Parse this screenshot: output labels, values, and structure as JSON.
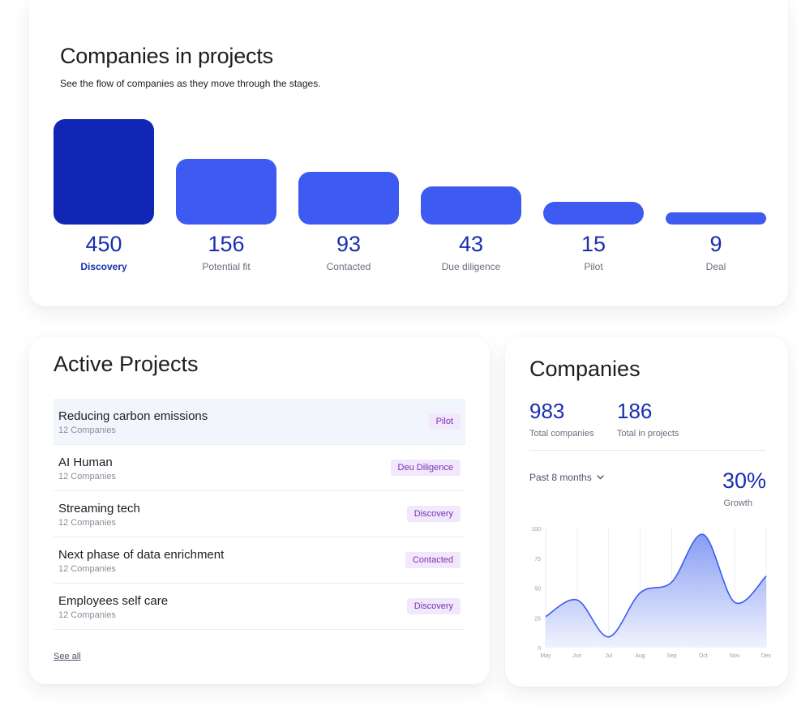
{
  "funnel": {
    "title": "Companies in projects",
    "subtitle": "See the flow of companies as they move through the stages.",
    "stages": [
      {
        "value": "450",
        "label": "Discovery",
        "count": 450,
        "active": true
      },
      {
        "value": "156",
        "label": "Potential fit",
        "count": 156,
        "active": false
      },
      {
        "value": "93",
        "label": "Contacted",
        "count": 93,
        "active": false
      },
      {
        "value": "43",
        "label": "Due diligence",
        "count": 43,
        "active": false
      },
      {
        "value": "15",
        "label": "Pilot",
        "count": 15,
        "active": false
      },
      {
        "value": "9",
        "label": "Deal",
        "count": 9,
        "active": false
      }
    ],
    "colors": {
      "active": "#1226b5",
      "default": "#3d5af1"
    }
  },
  "projects": {
    "title": "Active Projects",
    "items": [
      {
        "name": "Reducing carbon emissions",
        "count": "12 Companies",
        "status": "Pilot"
      },
      {
        "name": "AI Human",
        "count": "12 Companies",
        "status": "Deu Diligence"
      },
      {
        "name": "Streaming tech",
        "count": "12 Companies",
        "status": "Discovery"
      },
      {
        "name": "Next phase of data enrichment",
        "count": "12 Companies",
        "status": "Contacted"
      },
      {
        "name": "Employees self care",
        "count": "12 Companies",
        "status": "Discovery"
      }
    ],
    "see_all": "See all"
  },
  "companies": {
    "title": "Companies",
    "total_value": "983",
    "total_label": "Total companies",
    "in_projects_value": "186",
    "in_projects_label": "Total in projects",
    "period": "Past 8 months",
    "period_icon": "chevron-down-icon",
    "growth_value": "30%",
    "growth_label": "Growth"
  },
  "chart_data": {
    "type": "area",
    "x": [
      "May",
      "Jun",
      "Jul",
      "Aug",
      "Sep",
      "Oct",
      "Nov",
      "Dec"
    ],
    "series": [
      {
        "name": "Companies",
        "values": [
          26,
          40,
          9,
          46,
          55,
          95,
          38,
          60
        ]
      }
    ],
    "ylim": [
      0,
      100
    ],
    "yticks": [
      "100",
      "75",
      "50",
      "25",
      "0"
    ],
    "grid": true,
    "line_color": "#3d5af1",
    "fill_color_top": "#8097f2",
    "fill_color_bottom": "#eef1fd"
  }
}
